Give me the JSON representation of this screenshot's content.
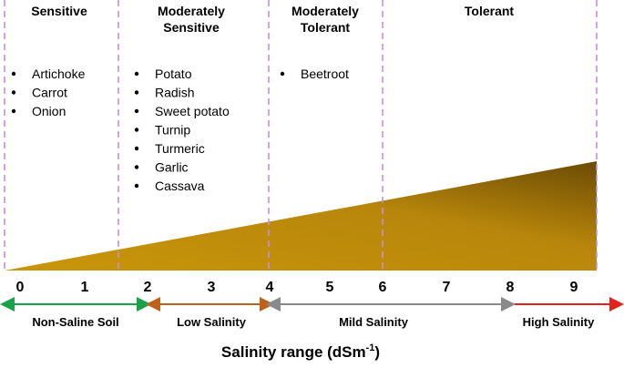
{
  "groups": [
    {
      "title": [
        "Sensitive"
      ],
      "items": [
        "Artichoke",
        "Carrot",
        "Onion"
      ]
    },
    {
      "title": [
        "Moderately",
        "Sensitive"
      ],
      "items": [
        "Potato",
        "Radish",
        "Sweet potato",
        "Turnip",
        "Turmeric",
        "Garlic",
        "Cassava"
      ]
    },
    {
      "title": [
        "Moderately",
        "Tolerant"
      ],
      "items": [
        "Beetroot"
      ]
    },
    {
      "title": [
        "Tolerant"
      ],
      "items": []
    }
  ],
  "scale_labels": [
    "0",
    "1",
    "2",
    "3",
    "4",
    "5",
    "6",
    "7",
    "8",
    "9"
  ],
  "ranges": [
    "Non-Saline Soil",
    "Low Salinity",
    "Mild Salinity",
    "High Salinity"
  ],
  "axis_title": {
    "text": "Salinity range (dSm",
    "superscript": "-1",
    "suffix": ")"
  }
}
